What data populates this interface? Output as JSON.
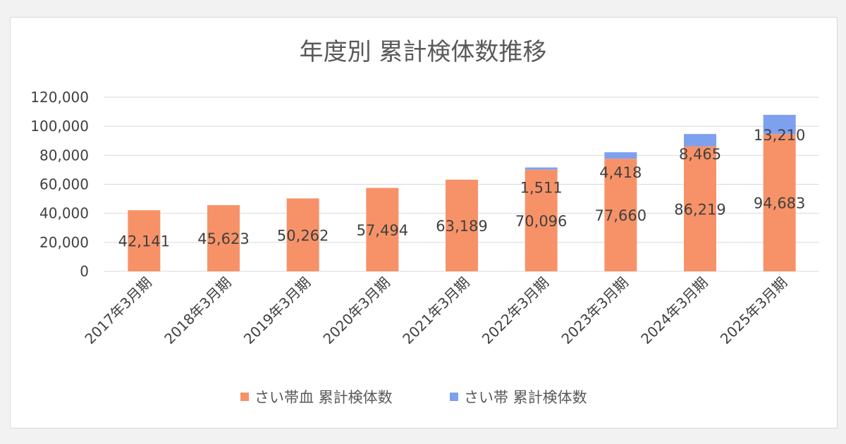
{
  "chart_data": {
    "type": "bar",
    "stacked": true,
    "title": "年度別 累計検体数推移",
    "categories": [
      "2017年3月期",
      "2018年3月期",
      "2019年3月期",
      "2020年3月期",
      "2021年3月期",
      "2022年3月期",
      "2023年3月期",
      "2024年3月期",
      "2025年3月期"
    ],
    "series": [
      {
        "name": "さい帯血 累計検体数",
        "color": "#f79268",
        "values": [
          42141,
          45623,
          50262,
          57494,
          63189,
          70096,
          77660,
          86219,
          94683
        ],
        "labels": [
          "42,141",
          "45,623",
          "50,262",
          "57,494",
          "63,189",
          "70,096",
          "77,660",
          "86,219",
          "94,683"
        ]
      },
      {
        "name": "さい帯 累計検体数",
        "color": "#7ea1ef",
        "values": [
          null,
          null,
          null,
          null,
          null,
          1511,
          4418,
          8465,
          13210
        ],
        "labels": [
          "",
          "",
          "",
          "",
          "",
          "1,511",
          "4,418",
          "8,465",
          "13,210"
        ]
      }
    ],
    "yticks": [
      "0",
      "20,000",
      "40,000",
      "60,000",
      "80,000",
      "100,000",
      "120,000"
    ],
    "ylim": [
      0,
      120000
    ],
    "grid": true,
    "legend": "bottom"
  }
}
